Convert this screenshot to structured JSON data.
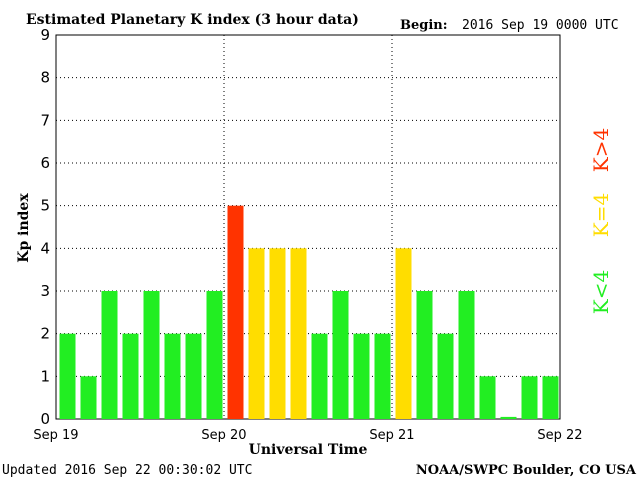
{
  "header": {
    "title": "Estimated Planetary K index (3 hour data)",
    "begin_label": "Begin:",
    "begin_value": "2016 Sep 19 0000 UTC"
  },
  "footer": {
    "updated": "Updated 2016 Sep 22 00:30:02 UTC",
    "source": "NOAA/SWPC Boulder, CO USA"
  },
  "legend": {
    "high": {
      "label": "K>4",
      "color": "#ff3300"
    },
    "mid": {
      "label": "K=4",
      "color": "#ffdd00"
    },
    "low": {
      "label": "K<4",
      "color": "#22ee22"
    }
  },
  "chart_data": {
    "type": "bar",
    "title": "Estimated Planetary K index (3 hour data)",
    "xlabel": "Universal Time",
    "ylabel": "Kp index",
    "ylim": [
      0,
      9
    ],
    "yticks": [
      "0",
      "1",
      "2",
      "3",
      "4",
      "5",
      "6",
      "7",
      "8",
      "9"
    ],
    "xticks": [
      "Sep 19",
      "Sep 20",
      "Sep 21",
      "Sep 22"
    ],
    "grid": true,
    "bar_interval_hours": 3,
    "values": [
      2,
      1,
      3,
      2,
      3,
      2,
      2,
      3,
      5,
      4,
      4,
      4,
      2,
      3,
      2,
      2,
      4,
      3,
      2,
      3,
      1,
      0.05,
      1,
      1
    ],
    "colors": {
      "low": "#22ee22",
      "equal4": "#ffdd00",
      "high": "#ff3300"
    }
  }
}
